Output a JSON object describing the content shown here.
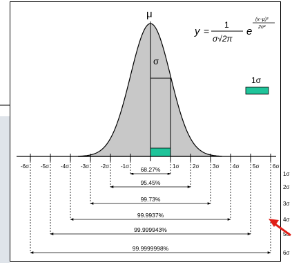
{
  "diagram": {
    "peak_label": "μ",
    "sigma_label": "σ",
    "legend_label": "1σ",
    "formula": {
      "lhs": "y",
      "numerator": "1",
      "denominator": "σ√2π",
      "base": "e",
      "exp_numerator": "(x−μ)²",
      "exp_denominator": "2σ²"
    },
    "axis_ticks_left": [
      "-6σ",
      "-5σ",
      "-4σ",
      "-3σ",
      "-2σ",
      "-1σ"
    ],
    "axis_ticks_right": [
      "1σ",
      "2σ",
      "3σ",
      "4σ",
      "5σ",
      "6σ"
    ],
    "intervals": [
      {
        "sigma": "1σ",
        "percent": "68.27%"
      },
      {
        "sigma": "2σ",
        "percent": "95.45%"
      },
      {
        "sigma": "3σ",
        "percent": "99.73%"
      },
      {
        "sigma": "4σ",
        "percent": "99.9937%"
      },
      {
        "sigma": "5σ",
        "percent": "99.999943%"
      },
      {
        "sigma": "6σ",
        "percent": "99.9999998%"
      }
    ],
    "colors": {
      "curve_fill": "#c8c8c8",
      "highlight": "#1fc49a",
      "arrow": "#e01f17",
      "side_panel": "#dfe4ea"
    }
  }
}
